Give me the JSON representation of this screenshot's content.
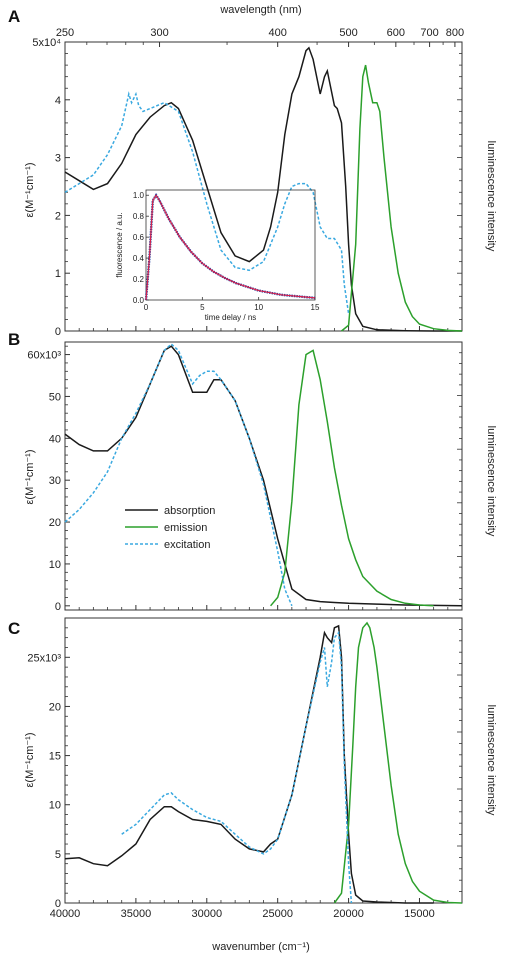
{
  "figure": {
    "top_axis_label": "wavelength (nm)",
    "bottom_axis_label": "wavenumber (cm⁻¹)",
    "ylabel": "ε(M⁻¹cm⁻¹)",
    "y2label": "luminescence intensity",
    "top_ticks": [
      "250",
      "300",
      "400",
      "500",
      "600",
      "700",
      "800"
    ],
    "x_ticks": [
      "40000",
      "35000",
      "30000",
      "25000",
      "20000",
      "15000"
    ],
    "panel_letters": [
      "A",
      "B",
      "C"
    ],
    "colors": {
      "absorption": "#1a1a1a",
      "emission": "#2ca02c",
      "excitation": "#3aa9e0",
      "fit": "#d6204a",
      "decay": "#2040a0"
    }
  },
  "legend": {
    "absorption": "absorption",
    "emission": "emission",
    "excitation": "excitation"
  },
  "inset": {
    "xlabel": "time delay / ns",
    "ylabel": "fluorescence / a.u.",
    "x_ticks": [
      "0",
      "5",
      "10",
      "15"
    ],
    "y_ticks": [
      "0.0",
      "0.2",
      "0.4",
      "0.6",
      "0.8",
      "1.0"
    ]
  },
  "chart_data": [
    {
      "type": "line",
      "panel": "A",
      "xlabel": "wavenumber (cm⁻¹)",
      "ylabel": "ε(M⁻¹cm⁻¹)",
      "y2label": "luminescence intensity",
      "xlim": [
        40000,
        12000
      ],
      "ylim": [
        0,
        50000
      ],
      "y_tick_labels": [
        "0",
        "1",
        "2",
        "3",
        "4",
        "5x10⁴"
      ],
      "series": [
        {
          "name": "absorption",
          "x": [
            40000,
            39000,
            38000,
            37000,
            36000,
            35000,
            34000,
            33000,
            32500,
            32000,
            31000,
            30000,
            29000,
            28000,
            27000,
            26000,
            25500,
            25000,
            24500,
            24000,
            23500,
            23000,
            22800,
            22500,
            22000,
            21700,
            21500,
            21000,
            20800,
            20500,
            20200,
            20000,
            19800,
            19500,
            19000,
            18000,
            16000,
            14000,
            12000
          ],
          "y": [
            27500,
            26000,
            24500,
            25500,
            29000,
            34000,
            37000,
            39000,
            39500,
            38500,
            33000,
            25000,
            17000,
            13000,
            12000,
            14000,
            18000,
            24000,
            34000,
            41000,
            44000,
            48500,
            49000,
            47000,
            41000,
            44000,
            45000,
            39000,
            38500,
            36000,
            25000,
            15000,
            8000,
            3000,
            800,
            200,
            50,
            0,
            0
          ]
        },
        {
          "name": "emission",
          "x": [
            20500,
            20000,
            19500,
            19200,
            19000,
            18800,
            18600,
            18300,
            18000,
            17800,
            17500,
            17000,
            16500,
            16000,
            15500,
            15000,
            14000,
            13000,
            12000
          ],
          "y": [
            0,
            1000,
            15000,
            35000,
            44000,
            46000,
            43000,
            39500,
            39500,
            38000,
            30000,
            18000,
            10000,
            5000,
            2500,
            1200,
            400,
            100,
            0
          ]
        },
        {
          "name": "excitation",
          "x": [
            40000,
            39000,
            38000,
            37000,
            36000,
            35500,
            35300,
            35000,
            34800,
            34500,
            34000,
            33000,
            32000,
            31000,
            30000,
            29000,
            28000,
            27000,
            26000,
            25500,
            25000,
            24500,
            24000,
            23500,
            23000,
            22500,
            22000,
            21500,
            21000,
            20500,
            20300,
            20000
          ],
          "y": [
            24000,
            25500,
            27000,
            30500,
            35500,
            41000,
            39500,
            41000,
            39000,
            38000,
            38500,
            39500,
            38000,
            31000,
            22000,
            14000,
            11000,
            10500,
            12000,
            15000,
            18000,
            22000,
            25000,
            25500,
            25500,
            24000,
            18000,
            16000,
            16000,
            14000,
            8000,
            3000
          ]
        }
      ]
    },
    {
      "type": "line",
      "panel": "A-inset",
      "xlabel": "time delay / ns",
      "ylabel": "fluorescence / a.u.",
      "xlim": [
        0,
        15
      ],
      "ylim": [
        0,
        1.05
      ],
      "series": [
        {
          "name": "decay",
          "x": [
            0,
            0.3,
            0.6,
            0.9,
            1.2,
            2,
            3,
            4,
            5,
            6,
            7,
            8,
            10,
            12,
            14,
            15
          ],
          "y": [
            0,
            0.4,
            0.95,
            1.0,
            0.95,
            0.78,
            0.6,
            0.46,
            0.35,
            0.27,
            0.21,
            0.16,
            0.09,
            0.05,
            0.03,
            0.02
          ]
        },
        {
          "name": "fit",
          "x": [
            0,
            0.3,
            0.6,
            0.9,
            1.2,
            2,
            3,
            4,
            5,
            6,
            7,
            8,
            10,
            12,
            14,
            15
          ],
          "y": [
            0,
            0.4,
            0.95,
            1.0,
            0.95,
            0.78,
            0.6,
            0.46,
            0.35,
            0.27,
            0.21,
            0.16,
            0.09,
            0.05,
            0.03,
            0.02
          ]
        }
      ]
    },
    {
      "type": "line",
      "panel": "B",
      "xlabel": "wavenumber (cm⁻¹)",
      "ylabel": "ε(M⁻¹cm⁻¹)",
      "y2label": "luminescence intensity",
      "xlim": [
        40000,
        12000
      ],
      "ylim": [
        -1000,
        63000
      ],
      "y_tick_labels": [
        "0",
        "10",
        "20",
        "30",
        "40",
        "50",
        "60x10³"
      ],
      "series": [
        {
          "name": "absorption",
          "x": [
            40000,
            39000,
            38000,
            37000,
            36000,
            35000,
            34000,
            33000,
            32500,
            32000,
            31000,
            30000,
            29500,
            29000,
            28000,
            27000,
            26000,
            25000,
            24000,
            23000,
            22000,
            21000,
            20000,
            18000,
            16000,
            14000,
            12000
          ],
          "y": [
            41000,
            38500,
            37000,
            37000,
            40000,
            45000,
            53000,
            61000,
            62000,
            60000,
            51000,
            51000,
            54000,
            54000,
            49000,
            40000,
            30000,
            16000,
            4000,
            1500,
            1000,
            800,
            600,
            400,
            200,
            100,
            0
          ]
        },
        {
          "name": "emission",
          "x": [
            25500,
            25000,
            24500,
            24000,
            23500,
            23000,
            22500,
            22000,
            21500,
            21000,
            20500,
            20000,
            19500,
            19000,
            18000,
            17000,
            16000,
            15000,
            14000
          ],
          "y": [
            0,
            2000,
            8000,
            25000,
            48000,
            60000,
            61000,
            54000,
            44000,
            33000,
            24000,
            16000,
            11000,
            7000,
            3500,
            1500,
            600,
            200,
            0
          ]
        },
        {
          "name": "excitation",
          "x": [
            40000,
            39000,
            38000,
            37000,
            36000,
            35000,
            34000,
            33000,
            32500,
            32000,
            31000,
            30500,
            30000,
            29500,
            29000,
            28000,
            27000,
            26000,
            25000,
            24500,
            24000
          ],
          "y": [
            20000,
            23000,
            27000,
            32000,
            40000,
            46000,
            53000,
            61000,
            62500,
            61000,
            53000,
            55000,
            56000,
            56000,
            54000,
            49000,
            40000,
            29000,
            13000,
            4000,
            0
          ]
        }
      ]
    },
    {
      "type": "line",
      "panel": "C",
      "xlabel": "wavenumber (cm⁻¹)",
      "ylabel": "ε(M⁻¹cm⁻¹)",
      "y2label": "luminescence intensity",
      "xlim": [
        40000,
        12000
      ],
      "ylim": [
        0,
        29000
      ],
      "y_tick_labels": [
        "0",
        "5",
        "10",
        "15",
        "20",
        "25x10³"
      ],
      "series": [
        {
          "name": "absorption",
          "x": [
            40000,
            39000,
            38000,
            37000,
            36000,
            35000,
            34000,
            33000,
            32500,
            32000,
            31000,
            30000,
            29000,
            28000,
            27000,
            26000,
            25500,
            25000,
            24000,
            23000,
            22000,
            21700,
            21500,
            21200,
            21000,
            20700,
            20500,
            20300,
            20000,
            19800,
            19500,
            19000,
            18000,
            16000,
            14000
          ],
          "y": [
            4500,
            4600,
            4000,
            3800,
            4800,
            6000,
            8500,
            9800,
            9800,
            9300,
            8500,
            8300,
            8000,
            6500,
            5500,
            5200,
            6000,
            6500,
            11000,
            18000,
            25000,
            27500,
            27000,
            26500,
            28000,
            28200,
            25000,
            15000,
            7000,
            3000,
            800,
            200,
            100,
            0,
            0
          ]
        },
        {
          "name": "emission",
          "x": [
            21000,
            20500,
            20000,
            19700,
            19500,
            19300,
            19000,
            18700,
            18500,
            18200,
            18000,
            17500,
            17000,
            16500,
            16000,
            15500,
            15000,
            14000,
            13000,
            12000
          ],
          "y": [
            0,
            1000,
            8000,
            16000,
            22000,
            26000,
            28000,
            28500,
            28000,
            26000,
            24000,
            18000,
            12000,
            7000,
            4000,
            2200,
            1200,
            300,
            50,
            0
          ]
        },
        {
          "name": "excitation",
          "x": [
            36000,
            35000,
            34000,
            33000,
            32500,
            32000,
            31000,
            30000,
            29000,
            28000,
            27000,
            26000,
            25500,
            25000,
            24000,
            23000,
            22000,
            21700,
            21500,
            21200,
            21000,
            20700,
            20500,
            20300,
            20000,
            19800
          ],
          "y": [
            7000,
            8000,
            9500,
            11000,
            11200,
            10500,
            9500,
            8700,
            8300,
            7000,
            5700,
            5000,
            5500,
            6500,
            11000,
            18000,
            24500,
            26000,
            22000,
            24500,
            27000,
            27500,
            24000,
            14000,
            4000,
            0
          ]
        }
      ]
    }
  ]
}
